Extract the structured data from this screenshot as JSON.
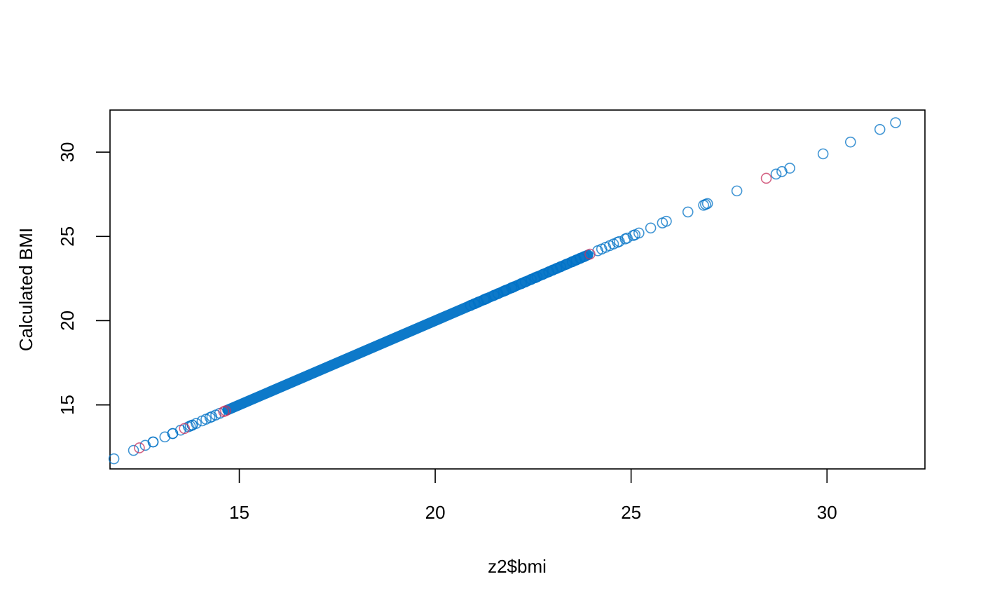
{
  "chart_data": {
    "type": "scatter",
    "title": "",
    "xlabel": "z2$bmi",
    "ylabel": "Calculated BMI",
    "xlim": [
      11.7,
      32.5
    ],
    "ylim": [
      11.2,
      32.5
    ],
    "xticks": [
      15,
      20,
      25,
      30
    ],
    "yticks": [
      15,
      20,
      25,
      30
    ],
    "grid": false,
    "legend": "none",
    "colors": {
      "main": "#0072C6",
      "highlight": "#C7325E"
    },
    "line_range": [
      14.7,
      23.9
    ],
    "series": [
      {
        "color": "main",
        "points": [
          [
            11.8,
            11.8
          ],
          [
            12.3,
            12.3
          ],
          [
            12.6,
            12.6
          ],
          [
            12.8,
            12.8
          ],
          [
            12.8,
            12.8
          ],
          [
            13.1,
            13.1
          ],
          [
            13.3,
            13.3
          ],
          [
            13.3,
            13.3
          ],
          [
            13.5,
            13.5
          ],
          [
            13.7,
            13.7
          ],
          [
            13.75,
            13.75
          ],
          [
            13.8,
            13.8
          ],
          [
            13.8,
            13.8
          ],
          [
            13.9,
            13.9
          ],
          [
            14.05,
            14.05
          ],
          [
            14.15,
            14.15
          ],
          [
            14.25,
            14.25
          ],
          [
            14.3,
            14.3
          ],
          [
            14.4,
            14.4
          ],
          [
            14.5,
            14.5
          ],
          [
            20.9,
            20.9
          ],
          [
            21.0,
            21.0
          ],
          [
            21.1,
            21.1
          ],
          [
            21.25,
            21.25
          ],
          [
            21.3,
            21.3
          ],
          [
            21.5,
            21.5
          ],
          [
            21.6,
            21.6
          ],
          [
            21.75,
            21.75
          ],
          [
            21.8,
            21.8
          ],
          [
            21.95,
            21.95
          ],
          [
            22.0,
            22.0
          ],
          [
            22.2,
            22.2
          ],
          [
            22.3,
            22.3
          ],
          [
            22.45,
            22.45
          ],
          [
            22.55,
            22.55
          ],
          [
            22.6,
            22.6
          ],
          [
            22.75,
            22.75
          ],
          [
            22.9,
            22.9
          ],
          [
            23.0,
            23.0
          ],
          [
            23.1,
            23.1
          ],
          [
            23.2,
            23.2
          ],
          [
            23.35,
            23.35
          ],
          [
            23.5,
            23.5
          ],
          [
            23.6,
            23.6
          ],
          [
            23.7,
            23.7
          ],
          [
            23.8,
            23.8
          ],
          [
            24.15,
            24.15
          ],
          [
            24.25,
            24.25
          ],
          [
            24.35,
            24.35
          ],
          [
            24.45,
            24.45
          ],
          [
            24.55,
            24.55
          ],
          [
            24.65,
            24.65
          ],
          [
            24.7,
            24.7
          ],
          [
            24.85,
            24.85
          ],
          [
            24.9,
            24.9
          ],
          [
            25.05,
            25.05
          ],
          [
            25.1,
            25.1
          ],
          [
            25.2,
            25.2
          ],
          [
            25.5,
            25.5
          ],
          [
            25.8,
            25.8
          ],
          [
            25.9,
            25.9
          ],
          [
            26.45,
            26.45
          ],
          [
            26.85,
            26.85
          ],
          [
            26.9,
            26.9
          ],
          [
            26.95,
            26.95
          ],
          [
            27.7,
            27.7
          ],
          [
            28.7,
            28.7
          ],
          [
            28.85,
            28.85
          ],
          [
            29.05,
            29.05
          ],
          [
            29.9,
            29.9
          ],
          [
            30.6,
            30.6
          ],
          [
            31.35,
            31.35
          ],
          [
            31.75,
            31.75
          ]
        ]
      },
      {
        "color": "highlight",
        "points": [
          [
            12.45,
            12.45
          ],
          [
            13.6,
            13.6
          ],
          [
            14.6,
            14.6
          ],
          [
            14.65,
            14.65
          ],
          [
            23.95,
            23.95
          ],
          [
            28.45,
            28.45
          ]
        ]
      }
    ]
  }
}
